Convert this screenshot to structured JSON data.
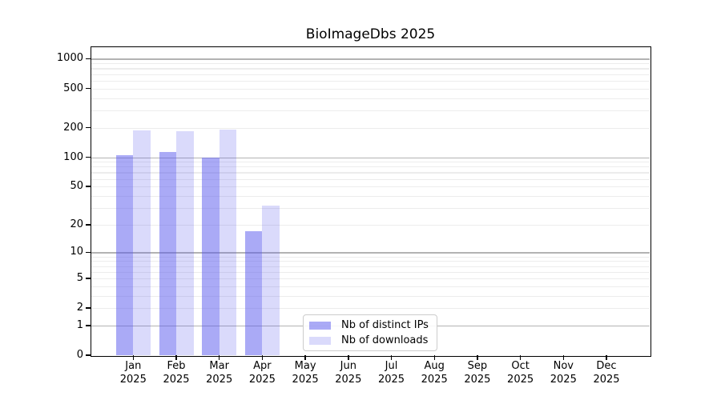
{
  "title": "BioImageDbs 2025",
  "chart_data": {
    "type": "bar",
    "title": "BioImageDbs 2025",
    "year_label": "2025",
    "categories": [
      "Jan",
      "Feb",
      "Mar",
      "Apr",
      "May",
      "Jun",
      "Jul",
      "Aug",
      "Sep",
      "Oct",
      "Nov",
      "Dec"
    ],
    "x_tick_labels": [
      [
        "Jan",
        "2025"
      ],
      [
        "Feb",
        "2025"
      ],
      [
        "Mar",
        "2025"
      ],
      [
        "Apr",
        "2025"
      ],
      [
        "May",
        "2025"
      ],
      [
        "Jun",
        "2025"
      ],
      [
        "Jul",
        "2025"
      ],
      [
        "Aug",
        "2025"
      ],
      [
        "Sep",
        "2025"
      ],
      [
        "Oct",
        "2025"
      ],
      [
        "Nov",
        "2025"
      ],
      [
        "Dec",
        "2025"
      ]
    ],
    "series": [
      {
        "name": "Nb of distinct IPs",
        "key": "distinct-ips",
        "color_hex": "#aaaaf6",
        "color_rgba": "rgba(85,85,238,0.5)",
        "values": [
          104,
          112,
          99,
          17,
          0,
          0,
          0,
          0,
          0,
          0,
          0,
          0
        ]
      },
      {
        "name": "Nb of downloads",
        "key": "downloads",
        "color_hex": "#d9d9fb",
        "color_rgba": "rgba(85,85,238,0.22)",
        "values": [
          189,
          183,
          193,
          32,
          0,
          0,
          0,
          0,
          0,
          0,
          0,
          0
        ]
      }
    ],
    "y_scale": "log10(1+y)",
    "y_ticks": [
      0,
      1,
      2,
      5,
      10,
      20,
      50,
      100,
      200,
      500,
      1000
    ],
    "y_gridlines_major": [
      1,
      10,
      100,
      1000
    ],
    "y_gridlines_minor": [
      2,
      3,
      4,
      5,
      6,
      7,
      8,
      9,
      20,
      30,
      40,
      50,
      60,
      70,
      80,
      90,
      200,
      300,
      400,
      500,
      600,
      700,
      800,
      900
    ],
    "ylim": [
      0,
      1300
    ],
    "grid": true,
    "legend_position": "bottom-center",
    "colors": {
      "grid_major": "#b3b3b3",
      "grid_minor": "#ececec",
      "axis": "#000000",
      "background": "#ffffff"
    }
  }
}
